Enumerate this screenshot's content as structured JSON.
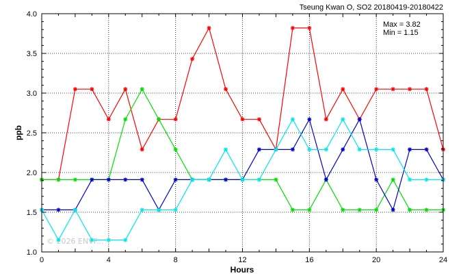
{
  "chart_data": {
    "type": "line",
    "title": "Tseung Kwan O, SO2 20180419-20180422",
    "xlabel": "Hours",
    "ylabel": "ppb",
    "xlim": [
      0,
      24
    ],
    "ylim": [
      1.0,
      4.0
    ],
    "xticks": [
      "0",
      "4",
      "8",
      "12",
      "16",
      "20",
      "24"
    ],
    "yticks": [
      "1.0",
      "1.5",
      "2.0",
      "2.5",
      "3.0",
      "3.5",
      "4.0"
    ],
    "grid": true,
    "annotations": [
      "Max = 3.82",
      "Min = 1.15"
    ],
    "watermark": "© 2026 ENVF...",
    "x": [
      0,
      1,
      2,
      3,
      4,
      5,
      6,
      7,
      8,
      9,
      10,
      11,
      12,
      13,
      14,
      15,
      16,
      17,
      18,
      19,
      20,
      21,
      22,
      23,
      24
    ],
    "series": [
      {
        "color": "#ff0000",
        "values": [
          1.91,
          1.91,
          3.05,
          3.05,
          2.67,
          3.05,
          2.29,
          2.67,
          2.67,
          3.43,
          3.82,
          3.05,
          2.67,
          2.67,
          2.29,
          3.82,
          3.82,
          2.67,
          3.05,
          2.67,
          3.05,
          3.05,
          3.05,
          3.05,
          2.29
        ]
      },
      {
        "color": "#00e000",
        "values": [
          1.91,
          1.91,
          1.91,
          1.91,
          1.91,
          2.67,
          3.05,
          2.67,
          2.29,
          1.91,
          1.91,
          1.91,
          1.91,
          1.91,
          1.91,
          1.53,
          1.53,
          1.91,
          1.53,
          1.53,
          1.53,
          1.91,
          1.53,
          1.53,
          1.53
        ]
      },
      {
        "color": "#0000cc",
        "values": [
          1.53,
          1.53,
          1.53,
          1.91,
          1.91,
          1.91,
          1.91,
          1.53,
          1.91,
          1.91,
          1.91,
          1.91,
          1.91,
          2.29,
          2.29,
          2.29,
          2.67,
          1.91,
          2.29,
          2.67,
          1.91,
          1.53,
          2.29,
          2.29,
          1.91
        ]
      },
      {
        "color": "#00e8e8",
        "values": [
          1.53,
          1.15,
          1.53,
          1.15,
          1.15,
          1.15,
          1.53,
          1.53,
          1.53,
          1.91,
          1.91,
          2.29,
          1.91,
          1.91,
          2.29,
          2.67,
          2.29,
          2.29,
          2.67,
          2.29,
          2.29,
          2.29,
          1.91,
          1.91,
          1.91
        ]
      }
    ]
  }
}
